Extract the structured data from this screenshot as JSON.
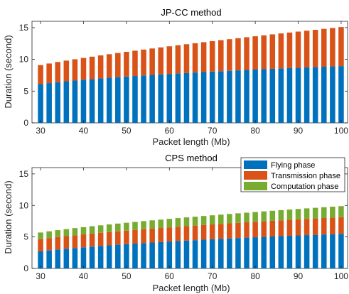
{
  "chart_data": [
    {
      "type": "bar",
      "stacked": true,
      "title": "JP-CC method",
      "xlabel": "Packet length (Mb)",
      "ylabel": "Duration (second)",
      "xlim": [
        28,
        101.5
      ],
      "ylim": [
        0,
        16
      ],
      "xticks": [
        30,
        40,
        50,
        60,
        70,
        80,
        90,
        100
      ],
      "yticks": [
        0,
        5,
        10,
        15
      ],
      "grid": false,
      "x": [
        30,
        32,
        34,
        36,
        38,
        40,
        42,
        44,
        46,
        48,
        50,
        52,
        54,
        56,
        58,
        60,
        62,
        64,
        66,
        68,
        70,
        72,
        74,
        76,
        78,
        80,
        82,
        84,
        86,
        88,
        90,
        92,
        94,
        96,
        98,
        100
      ],
      "series": [
        {
          "name": "Flying phase",
          "color": "#0072BD",
          "values": [
            6.1,
            6.26,
            6.41,
            6.54,
            6.66,
            6.78,
            6.89,
            7.0,
            7.1,
            7.2,
            7.29,
            7.38,
            7.47,
            7.55,
            7.63,
            7.71,
            7.79,
            7.86,
            7.93,
            8.0,
            8.07,
            8.14,
            8.2,
            8.27,
            8.33,
            8.39,
            8.45,
            8.51,
            8.57,
            8.62,
            8.68,
            8.73,
            8.78,
            8.84,
            8.89,
            8.94
          ]
        },
        {
          "name": "Transmission phase",
          "color": "#D95319",
          "values": [
            3.0,
            3.09,
            3.18,
            3.27,
            3.36,
            3.45,
            3.54,
            3.63,
            3.72,
            3.81,
            3.9,
            3.99,
            4.08,
            4.17,
            4.26,
            4.35,
            4.44,
            4.53,
            4.62,
            4.71,
            4.8,
            4.89,
            4.98,
            5.07,
            5.16,
            5.25,
            5.34,
            5.43,
            5.52,
            5.61,
            5.7,
            5.79,
            5.88,
            5.97,
            6.06,
            6.15
          ]
        }
      ]
    },
    {
      "type": "bar",
      "stacked": true,
      "title": "CPS method",
      "xlabel": "Packet length (Mb)",
      "ylabel": "Duration (second)",
      "xlim": [
        28,
        101.5
      ],
      "ylim": [
        0,
        16
      ],
      "xticks": [
        30,
        40,
        50,
        60,
        70,
        80,
        90,
        100
      ],
      "yticks": [
        0,
        5,
        10,
        15
      ],
      "grid": false,
      "legend": "top-right",
      "x": [
        30,
        32,
        34,
        36,
        38,
        40,
        42,
        44,
        46,
        48,
        50,
        52,
        54,
        56,
        58,
        60,
        62,
        64,
        66,
        68,
        70,
        72,
        74,
        76,
        78,
        80,
        82,
        84,
        86,
        88,
        90,
        92,
        94,
        96,
        98,
        100
      ],
      "series": [
        {
          "name": "Flying phase",
          "color": "#0072BD",
          "values": [
            2.7,
            2.85,
            3.0,
            3.12,
            3.24,
            3.35,
            3.46,
            3.56,
            3.66,
            3.76,
            3.85,
            3.94,
            4.03,
            4.11,
            4.19,
            4.27,
            4.35,
            4.42,
            4.49,
            4.56,
            4.63,
            4.7,
            4.76,
            4.83,
            4.89,
            4.95,
            5.01,
            5.07,
            5.13,
            5.18,
            5.24,
            5.29,
            5.34,
            5.39,
            5.44,
            5.49
          ]
        },
        {
          "name": "Transmission phase",
          "color": "#D95319",
          "values": [
            1.95,
            1.97,
            1.99,
            2.01,
            2.03,
            2.05,
            2.07,
            2.09,
            2.11,
            2.13,
            2.15,
            2.17,
            2.19,
            2.21,
            2.23,
            2.25,
            2.27,
            2.29,
            2.31,
            2.33,
            2.35,
            2.37,
            2.39,
            2.41,
            2.43,
            2.45,
            2.47,
            2.49,
            2.51,
            2.53,
            2.55,
            2.57,
            2.59,
            2.61,
            2.63,
            2.65
          ]
        },
        {
          "name": "Computation phase",
          "color": "#77AC30",
          "values": [
            1.05,
            1.07,
            1.09,
            1.11,
            1.13,
            1.15,
            1.17,
            1.19,
            1.21,
            1.23,
            1.25,
            1.27,
            1.29,
            1.31,
            1.33,
            1.35,
            1.37,
            1.39,
            1.41,
            1.43,
            1.45,
            1.47,
            1.49,
            1.51,
            1.53,
            1.55,
            1.57,
            1.59,
            1.61,
            1.63,
            1.65,
            1.67,
            1.69,
            1.71,
            1.73,
            1.75
          ]
        }
      ]
    }
  ]
}
